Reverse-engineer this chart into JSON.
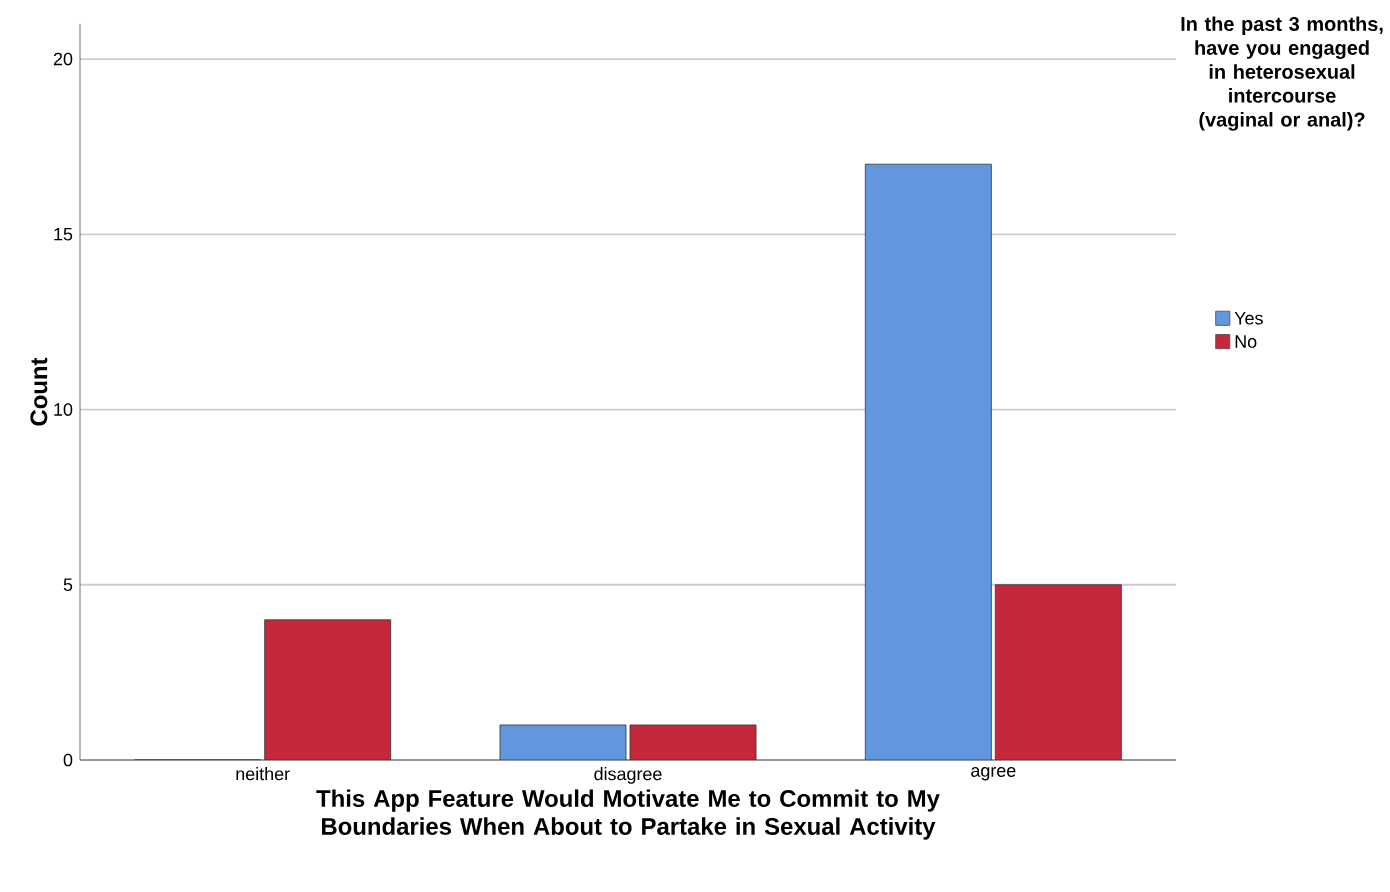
{
  "chart_data": {
    "type": "bar",
    "categories": [
      "neither",
      "disagree",
      "agree"
    ],
    "series": [
      {
        "name": "Yes",
        "color": "#6296de",
        "values": [
          0,
          1,
          17
        ]
      },
      {
        "name": "No",
        "color": "#c5283b",
        "values": [
          4,
          1,
          5
        ]
      }
    ],
    "xlabel": "This App Feature Would Motivate Me to Commit to My Boundaries When About to Partake in Sexual Activity",
    "ylabel": "Count",
    "legend_title": "In the past 3 months, have you engaged in heterosexual intercourse (vaginal or anal)?",
    "legend": "right",
    "ylim": [
      0,
      21
    ],
    "yticks": [
      0,
      5,
      10,
      15,
      20
    ],
    "grid": "y"
  }
}
